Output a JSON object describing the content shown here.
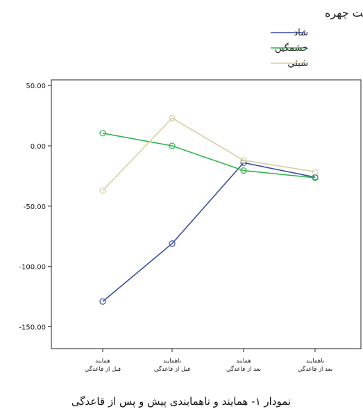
{
  "chart_data": {
    "type": "line",
    "legend": {
      "title": "حالت چهره",
      "placement": "top-right"
    },
    "categories": [
      [
        "همايند",
        "قبل از قاعدگي"
      ],
      [
        "ناهمايند",
        "قبل از قاعدگي"
      ],
      [
        "همايند",
        "بعد از قاعدگي"
      ],
      [
        "ناهمايند",
        "بعد از قاعدگي"
      ]
    ],
    "yticks": [
      "50.00",
      "0.00",
      "-50.00",
      "-100.00",
      "-150.00"
    ],
    "ylim": [
      -167,
      54
    ],
    "grid": false,
    "series": [
      {
        "name": "شاد",
        "color": "#3a4fa3",
        "values": [
          -129,
          -81,
          -14,
          -26
        ]
      },
      {
        "name": "خشمگين",
        "color": "#2db34a",
        "values": [
          10.5,
          0,
          -20.5,
          -26.5
        ]
      },
      {
        "name": "شيئي",
        "color": "#d6cfa3",
        "values": [
          -37,
          23,
          -12,
          -21.5
        ]
      }
    ],
    "caption": "نمودار ۱- همايند و ناهمايندی پيش و پس از قاعدگی"
  }
}
